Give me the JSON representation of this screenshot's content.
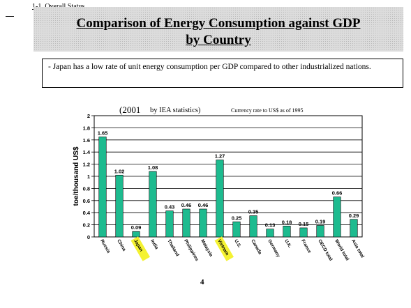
{
  "header": {
    "section_label": "1-1. Overall Status"
  },
  "title": {
    "line1": "Comparison of Energy Consumption against GDP",
    "line2": "by Country"
  },
  "note": {
    "text": "- Japan has a low rate of unit energy consumption per GDP compared to other industrialized nations."
  },
  "page_number": "4",
  "colors": {
    "bar": "#1dbb8f",
    "highlight": "#f4f232",
    "title_bg": "#dcdcdc"
  },
  "chart_data": {
    "type": "bar",
    "title": "(2001",
    "title_suffix": "by IEA statistics)",
    "subtitle": "Currency rate to US$ as of 1995",
    "ylabel": "toe/thousand US$",
    "xlabel": "",
    "ylim": [
      0,
      2
    ],
    "yticks": [
      "0",
      "0.2",
      "0.4",
      "0.6",
      "0.8",
      "1",
      "1.2",
      "1.4",
      "1.6",
      "1.8",
      "2"
    ],
    "grid": true,
    "categories": [
      "Russia",
      "China",
      "Japan",
      "India",
      "Thailand",
      "Philippines",
      "Malaysia",
      "Vietnam",
      "U.S.",
      "Canada",
      "Germany",
      "U.K.",
      "France",
      "OECD total",
      "World total",
      "Asia total"
    ],
    "highlighted": [
      "Japan",
      "Vietnam"
    ],
    "values": [
      1.65,
      1.02,
      0.09,
      1.08,
      0.43,
      0.46,
      0.46,
      1.27,
      0.25,
      0.35,
      0.13,
      0.18,
      0.15,
      0.19,
      0.66,
      0.29
    ],
    "value_labels": [
      "1.65",
      "1.02",
      "0.09",
      "1.08",
      "0.43",
      "0.46",
      "0.46",
      "1.27",
      "0.25",
      "0.35",
      "0.13",
      "0.18",
      "0.15",
      "0.19",
      "0.66",
      "0.29"
    ]
  }
}
